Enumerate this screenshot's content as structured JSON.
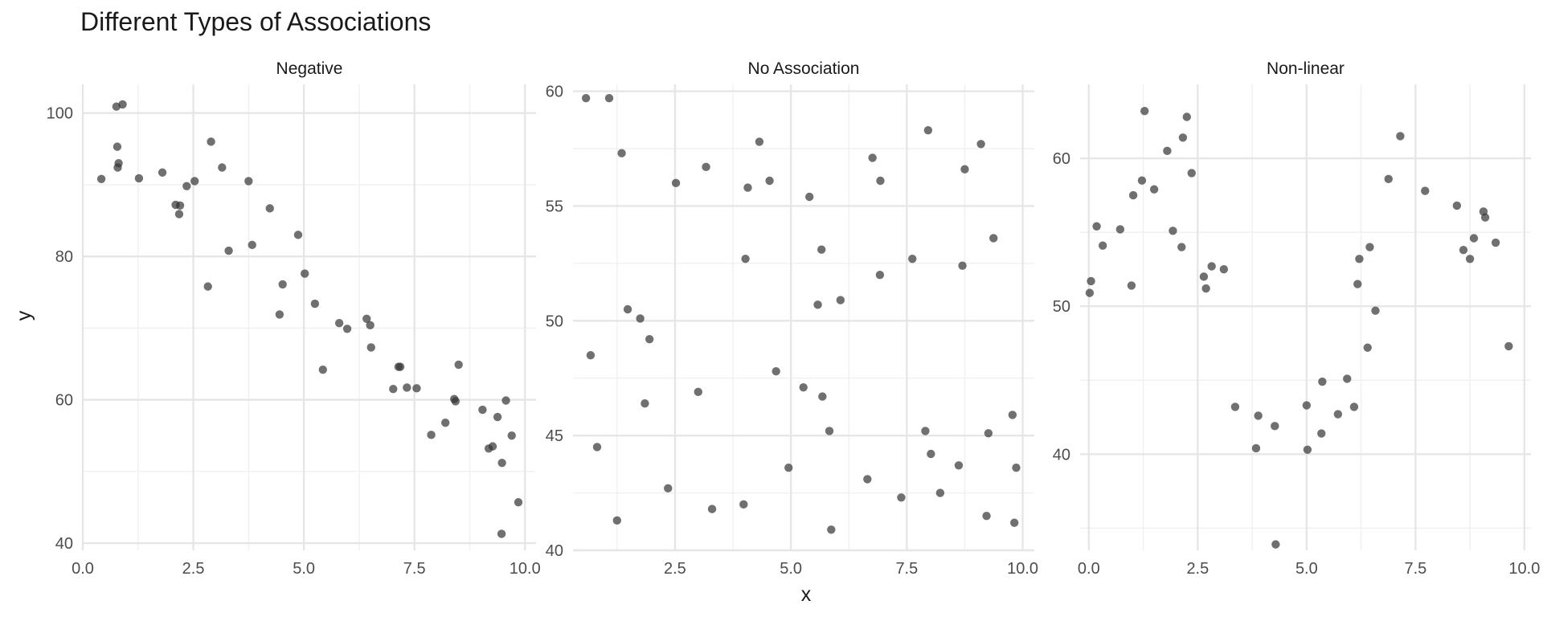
{
  "chart_data": {
    "type": "scatter",
    "title": "Different Types of Associations",
    "xlabel": "x",
    "ylabel": "y",
    "grid": true,
    "point_color": "#333333",
    "point_opacity": 0.7,
    "grid_major_color": "#e6e6e6",
    "grid_minor_color": "#f0f0f0",
    "panels": [
      {
        "name": "Negative",
        "xlim": [
          0,
          10.25
        ],
        "ylim": [
          39,
          104
        ],
        "xticks": [
          0,
          2.5,
          5,
          7.5,
          10
        ],
        "xtick_labels": [
          "0.0",
          "2.5",
          "5.0",
          "7.5",
          "10.0"
        ],
        "yticks": [
          40,
          60,
          80,
          100
        ],
        "ytick_labels": [
          "40",
          "60",
          "80",
          "100"
        ],
        "x": [
          0.42,
          0.76,
          0.78,
          0.79,
          0.81,
          0.9,
          1.27,
          1.8,
          2.1,
          2.18,
          2.2,
          2.35,
          2.53,
          2.83,
          2.9,
          3.15,
          3.3,
          3.75,
          3.83,
          4.23,
          4.45,
          4.52,
          4.87,
          5.02,
          5.25,
          5.43,
          5.8,
          5.98,
          6.42,
          6.5,
          6.52,
          7.02,
          7.14,
          7.18,
          7.33,
          7.55,
          7.88,
          8.2,
          8.4,
          8.43,
          8.5,
          9.04,
          9.18,
          9.27,
          9.38,
          9.48,
          9.57,
          9.7,
          9.85,
          9.47
        ],
        "y": [
          90.8,
          100.9,
          95.3,
          92.4,
          93.0,
          101.2,
          90.9,
          91.7,
          87.2,
          85.9,
          87.1,
          89.8,
          90.5,
          75.8,
          96.0,
          92.4,
          80.8,
          90.5,
          81.6,
          86.7,
          71.9,
          76.1,
          83.0,
          77.6,
          73.4,
          64.2,
          70.7,
          69.9,
          71.3,
          70.4,
          67.3,
          61.5,
          64.6,
          64.6,
          61.7,
          61.6,
          55.1,
          56.8,
          60.1,
          59.8,
          64.9,
          58.6,
          53.2,
          53.5,
          57.6,
          51.2,
          59.9,
          55.0,
          45.7,
          41.3
        ]
      },
      {
        "name": "No Association",
        "xlim": [
          0.3,
          10.25
        ],
        "ylim": [
          40,
          60.3
        ],
        "xticks": [
          2.5,
          5,
          7.5,
          10
        ],
        "xtick_labels": [
          "2.5",
          "5.0",
          "7.5",
          "10.0"
        ],
        "yticks": [
          40,
          45,
          50,
          55,
          60
        ],
        "ytick_labels": [
          "40",
          "45",
          "50",
          "55",
          "60"
        ],
        "x": [
          0.58,
          0.68,
          0.82,
          1.08,
          1.25,
          1.35,
          1.48,
          1.75,
          1.85,
          1.95,
          2.35,
          2.52,
          3.0,
          3.17,
          3.3,
          3.98,
          4.02,
          4.07,
          4.32,
          4.54,
          4.68,
          4.95,
          5.27,
          5.4,
          5.58,
          5.66,
          5.68,
          5.83,
          5.87,
          6.07,
          6.65,
          6.76,
          6.92,
          6.93,
          7.38,
          7.62,
          7.9,
          7.96,
          8.02,
          8.22,
          8.62,
          8.7,
          8.75,
          9.1,
          9.22,
          9.26,
          9.37,
          9.78,
          9.82,
          9.86
        ],
        "y": [
          59.7,
          48.5,
          44.5,
          59.7,
          41.3,
          57.3,
          50.5,
          50.1,
          46.4,
          49.2,
          42.7,
          56.0,
          46.9,
          56.7,
          41.8,
          42.0,
          52.7,
          55.8,
          57.8,
          56.1,
          47.8,
          43.6,
          47.1,
          55.4,
          50.7,
          53.1,
          46.7,
          45.2,
          40.9,
          50.9,
          43.1,
          57.1,
          52.0,
          56.1,
          42.3,
          52.7,
          45.2,
          58.3,
          44.2,
          42.5,
          43.7,
          52.4,
          56.6,
          57.7,
          41.5,
          45.1,
          53.6,
          45.9,
          41.2,
          43.6
        ]
      },
      {
        "name": "Non-linear",
        "xlim": [
          -0.2,
          10.15
        ],
        "ylim": [
          33.5,
          65
        ],
        "xticks": [
          0,
          2.5,
          5,
          7.5,
          10
        ],
        "xtick_labels": [
          "0.0",
          "2.5",
          "5.0",
          "7.5",
          "10.0"
        ],
        "yticks": [
          40,
          50,
          60
        ],
        "ytick_labels": [
          "40",
          "50",
          "60"
        ],
        "x": [
          0.02,
          0.05,
          0.18,
          0.32,
          0.72,
          0.98,
          1.02,
          1.22,
          1.28,
          1.5,
          1.8,
          1.93,
          2.13,
          2.16,
          2.25,
          2.36,
          2.64,
          2.69,
          2.82,
          3.1,
          3.36,
          3.84,
          3.89,
          4.27,
          4.29,
          5.0,
          5.02,
          5.34,
          5.36,
          5.72,
          5.93,
          6.09,
          6.17,
          6.21,
          6.4,
          6.45,
          6.58,
          6.88,
          7.15,
          7.72,
          8.45,
          8.6,
          8.75,
          8.84,
          9.06,
          9.1,
          9.34,
          9.64
        ],
        "y": [
          50.9,
          51.7,
          55.4,
          54.1,
          55.2,
          51.4,
          57.5,
          58.5,
          63.2,
          57.9,
          60.5,
          55.1,
          54.0,
          61.4,
          62.8,
          59.0,
          52.0,
          51.2,
          52.7,
          52.5,
          43.2,
          40.4,
          42.6,
          41.9,
          33.9,
          43.3,
          40.3,
          41.4,
          44.9,
          42.7,
          45.1,
          43.2,
          51.5,
          53.2,
          47.2,
          54.0,
          49.7,
          58.6,
          61.5,
          57.8,
          56.8,
          53.8,
          53.2,
          54.6,
          56.4,
          56.0,
          54.3,
          47.3
        ]
      }
    ]
  }
}
